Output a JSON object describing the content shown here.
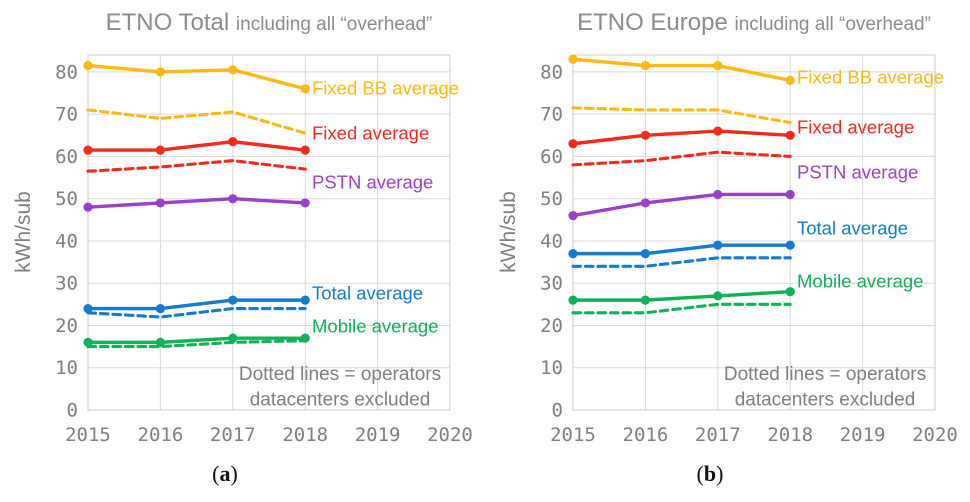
{
  "figure": {
    "captions": {
      "a": "(a)",
      "b": "(b)"
    }
  },
  "chart_data": [
    {
      "type": "line",
      "title": "ETNO Total",
      "subtitle": "including all “overhead”",
      "ylabel": "kWh/sub",
      "caption": "(a)",
      "x": [
        2015,
        2016,
        2017,
        2018
      ],
      "x_ticks": [
        2015,
        2016,
        2017,
        2018,
        2019,
        2020
      ],
      "y_ticks": [
        0,
        10,
        20,
        30,
        40,
        50,
        60,
        70,
        80
      ],
      "ylim": [
        0,
        84
      ],
      "grid": true,
      "legend_position": "inline-right",
      "annotation": [
        "Dotted lines = operators",
        "datacenters excluded"
      ],
      "series": [
        {
          "id": "fixed-bb",
          "name": "Fixed BB average",
          "color": "#fcb813",
          "style": "solid",
          "values": [
            81.5,
            80,
            80.5,
            76
          ],
          "label_value": 76.2
        },
        {
          "id": "fixed-bb-excl",
          "name": "Fixed BB average (datacenters excluded)",
          "color": "#fcb813",
          "style": "dashed",
          "values": [
            71,
            69,
            70.5,
            65.5
          ]
        },
        {
          "id": "fixed",
          "name": "Fixed average",
          "color": "#f42a1d",
          "style": "solid",
          "values": [
            61.5,
            61.5,
            63.5,
            61.5
          ],
          "label_value": 65.5
        },
        {
          "id": "fixed-excl",
          "name": "Fixed average (datacenters excluded)",
          "color": "#f42a1d",
          "style": "dashed",
          "values": [
            56.5,
            57.5,
            59,
            57
          ]
        },
        {
          "id": "pstn",
          "name": "PSTN average",
          "color": "#9a41c8",
          "style": "solid",
          "values": [
            48,
            49,
            50,
            49
          ],
          "label_value": 54
        },
        {
          "id": "total",
          "name": "Total average",
          "color": "#147bd1",
          "style": "solid",
          "values": [
            24,
            24,
            26,
            26
          ],
          "label_value": 27.7
        },
        {
          "id": "total-excl",
          "name": "Total average (datacenters excluded)",
          "color": "#147bd1",
          "style": "dashed",
          "values": [
            23,
            22,
            24,
            24
          ]
        },
        {
          "id": "mobile",
          "name": "Mobile average",
          "color": "#10b259",
          "style": "solid",
          "values": [
            16,
            16,
            17,
            17
          ],
          "label_value": 19.9
        },
        {
          "id": "mobile-excl",
          "name": "Mobile average (datacenters excluded)",
          "color": "#10b259",
          "style": "dashed",
          "values": [
            15,
            15,
            16,
            16.4
          ]
        }
      ]
    },
    {
      "type": "line",
      "title": "ETNO Europe",
      "subtitle": "including all “overhead”",
      "ylabel": "kWh/sub",
      "caption": "(b)",
      "x": [
        2015,
        2016,
        2017,
        2018
      ],
      "x_ticks": [
        2015,
        2016,
        2017,
        2018,
        2019,
        2020
      ],
      "y_ticks": [
        0,
        10,
        20,
        30,
        40,
        50,
        60,
        70,
        80
      ],
      "ylim": [
        0,
        84
      ],
      "grid": true,
      "legend_position": "inline-right",
      "annotation": [
        "Dotted lines = operators",
        "datacenters excluded"
      ],
      "series": [
        {
          "id": "fixed-bb",
          "name": "Fixed BB average",
          "color": "#fcb813",
          "style": "solid",
          "values": [
            83,
            81.5,
            81.5,
            78
          ],
          "label_value": 78.8
        },
        {
          "id": "fixed-bb-excl",
          "name": "Fixed BB average (datacenters excluded)",
          "color": "#fcb813",
          "style": "dashed",
          "values": [
            71.5,
            71,
            71,
            68
          ]
        },
        {
          "id": "fixed",
          "name": "Fixed average",
          "color": "#f42a1d",
          "style": "solid",
          "values": [
            63,
            65,
            66,
            65
          ],
          "label_value": 67
        },
        {
          "id": "fixed-excl",
          "name": "Fixed average (datacenters excluded)",
          "color": "#f42a1d",
          "style": "dashed",
          "values": [
            58,
            59,
            61,
            60
          ]
        },
        {
          "id": "pstn",
          "name": "PSTN average",
          "color": "#9a41c8",
          "style": "solid",
          "values": [
            46,
            49,
            51,
            51
          ],
          "label_value": 56.3
        },
        {
          "id": "total",
          "name": "Total average",
          "color": "#147bd1",
          "style": "solid",
          "values": [
            37,
            37,
            39,
            39
          ],
          "label_value": 43.1
        },
        {
          "id": "total-excl",
          "name": "Total average (datacenters excluded)",
          "color": "#147bd1",
          "style": "dashed",
          "values": [
            34,
            34,
            36,
            36
          ]
        },
        {
          "id": "mobile",
          "name": "Mobile average",
          "color": "#10b259",
          "style": "solid",
          "values": [
            26,
            26,
            27,
            28
          ],
          "label_value": 30.5
        },
        {
          "id": "mobile-excl",
          "name": "Mobile average (datacenters excluded)",
          "color": "#10b259",
          "style": "dashed",
          "values": [
            23,
            23,
            25,
            25
          ]
        }
      ]
    }
  ]
}
